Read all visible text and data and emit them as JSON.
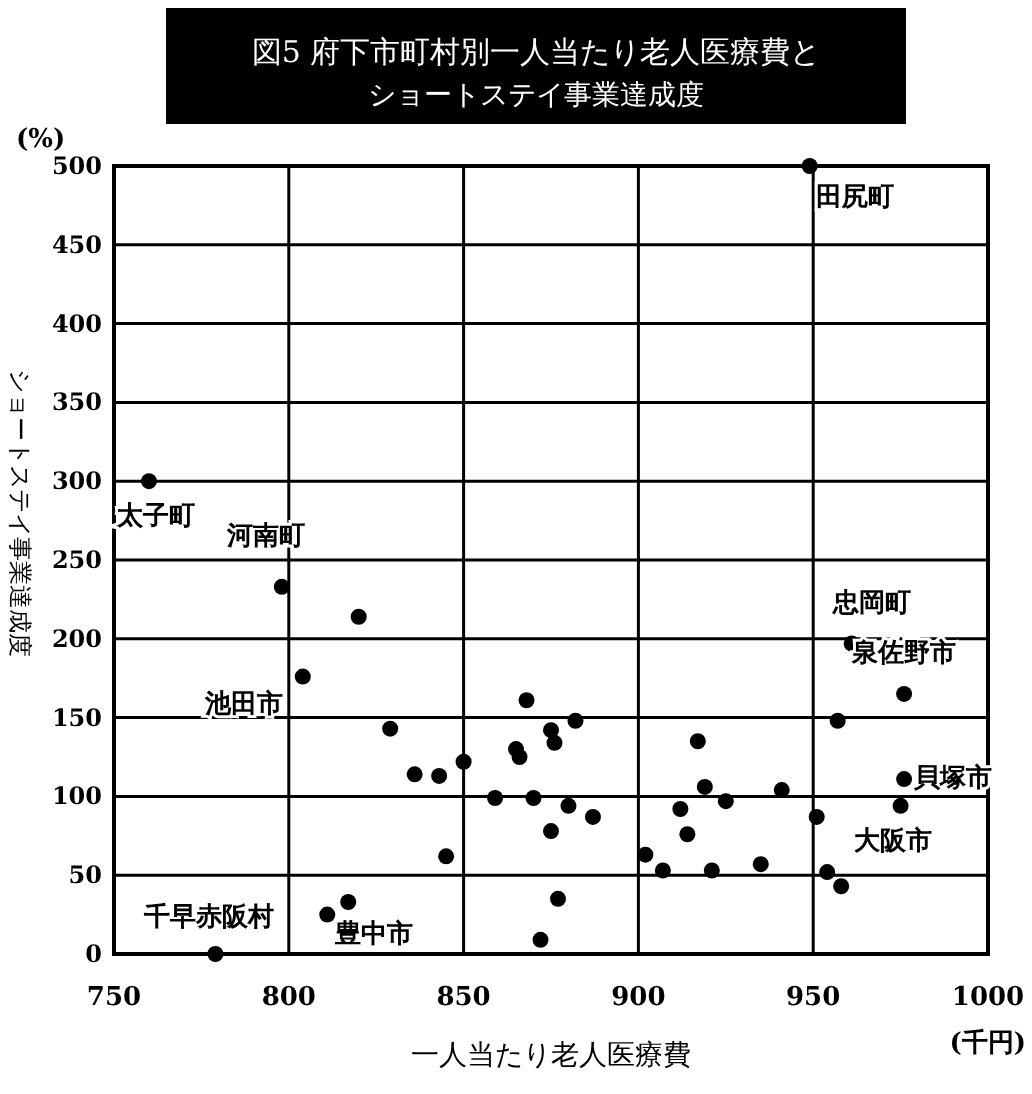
{
  "chart_data": {
    "type": "scatter",
    "title": "図5 府下市町村別一人当たり老人医療費と",
    "subtitle": "ショートステイ事業達成度",
    "xlabel": "一人当たり老人医療費",
    "ylabel": "ショートステイ事業達成度",
    "x": [
      760,
      949,
      798,
      820,
      804,
      829,
      836,
      843,
      850,
      845,
      859,
      868,
      865,
      866,
      870,
      872,
      811,
      817,
      779,
      875,
      876,
      882,
      880,
      875,
      887,
      877,
      902,
      907,
      912,
      914,
      917,
      919,
      925,
      921,
      935,
      941,
      951,
      957,
      954,
      958,
      961,
      976,
      976,
      975
    ],
    "values": [
      300,
      500,
      233,
      214,
      176,
      143,
      114,
      113,
      122,
      62,
      99,
      161,
      130,
      125,
      99,
      9,
      25,
      33,
      0,
      142,
      134,
      148,
      94,
      78,
      87,
      35,
      63,
      53,
      92,
      76,
      135,
      106,
      97,
      53,
      57,
      104,
      87,
      148,
      52,
      43,
      197,
      165,
      111,
      94
    ],
    "color": "#000000",
    "marker": "circle",
    "xlim": [
      750,
      1000
    ],
    "ylim": [
      0,
      500
    ],
    "xticks": [
      750,
      800,
      850,
      900,
      950,
      1000
    ],
    "yticks": [
      0,
      50,
      100,
      150,
      200,
      250,
      300,
      350,
      400,
      450,
      500
    ],
    "grid": true,
    "annotations": [
      {
        "text": "太子町",
        "x": 760,
        "y": 300
      },
      {
        "text": "河南町",
        "x": 798,
        "y": 233
      },
      {
        "text": "池田市",
        "x": 804,
        "y": 176
      },
      {
        "text": "千早赤阪村",
        "x": 779,
        "y": 0
      },
      {
        "text": "豊中市",
        "x": 811,
        "y": 25
      },
      {
        "text": "田尻町",
        "x": 949,
        "y": 500
      },
      {
        "text": "忠岡町",
        "x": 961,
        "y": 197
      },
      {
        "text": "泉佐野市",
        "x": 976,
        "y": 165
      },
      {
        "text": "貝塚市",
        "x": 976,
        "y": 111
      },
      {
        "text": "大阪市",
        "x": 975,
        "y": 94
      },
      "(%)",
      "(千円)"
    ]
  }
}
